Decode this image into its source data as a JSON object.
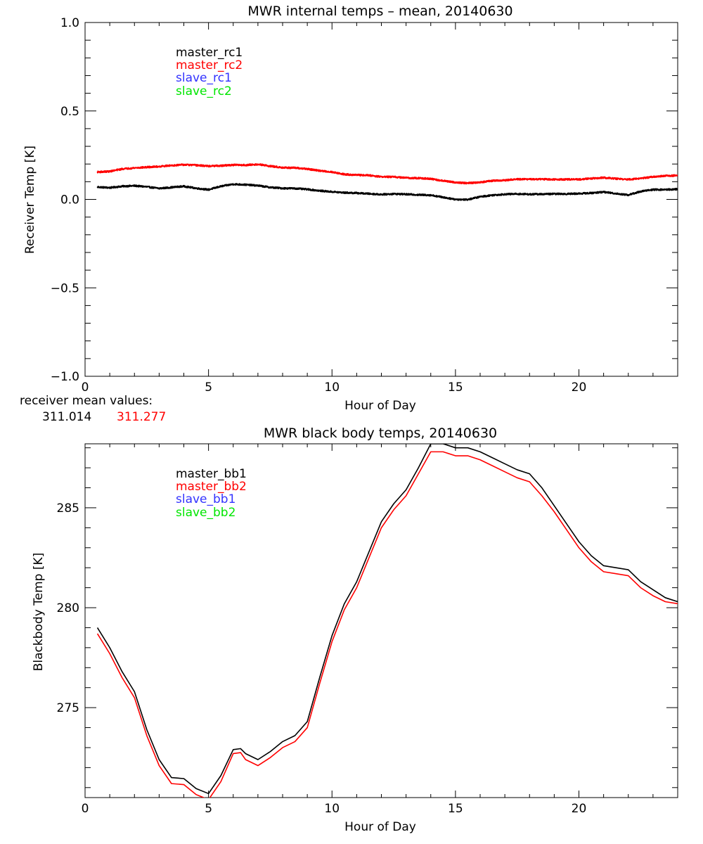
{
  "colors": {
    "black": "#000000",
    "red": "#ff0000",
    "blue": "#3333ff",
    "green": "#00e600"
  },
  "receiver_mean": {
    "label": "receiver mean values:",
    "value1": "311.014",
    "value2": "311.277"
  },
  "chart_data": [
    {
      "type": "line",
      "title": "MWR internal temps – mean, 20140630",
      "xlabel": "Hour of Day",
      "ylabel": "Receiver Temp [K]",
      "xlim": [
        0,
        24
      ],
      "ylim": [
        -1.0,
        1.0
      ],
      "xticks": [
        0,
        5,
        10,
        15,
        20
      ],
      "xtick_labels": [
        "0",
        "5",
        "10",
        "15",
        "20"
      ],
      "yticks": [
        -1.0,
        -0.5,
        0.0,
        0.5,
        1.0
      ],
      "ytick_labels": [
        "−1.0",
        "−0.5",
        "0.0",
        "0.5",
        "1.0"
      ],
      "legend": [
        "master_rc1",
        "master_rc2",
        "slave_rc1",
        "slave_rc2"
      ],
      "legend_position": "top-left",
      "series": [
        {
          "name": "master_rc1",
          "color": "black",
          "noise": 0.004,
          "x": [
            0.5,
            1.0,
            1.5,
            2.0,
            2.5,
            3.0,
            3.5,
            4.0,
            4.5,
            5.0,
            5.5,
            6.0,
            6.5,
            7.0,
            7.5,
            8.0,
            8.5,
            9.0,
            9.5,
            10.0,
            10.5,
            11.0,
            11.5,
            12.0,
            12.5,
            13.0,
            13.5,
            14.0,
            14.5,
            15.0,
            15.5,
            16.0,
            16.5,
            17.0,
            17.5,
            18.0,
            18.5,
            19.0,
            19.5,
            20.0,
            20.5,
            21.0,
            21.5,
            22.0,
            22.5,
            23.0,
            23.5,
            24.0
          ],
          "y": [
            0.07,
            0.066,
            0.074,
            0.077,
            0.071,
            0.062,
            0.068,
            0.074,
            0.063,
            0.055,
            0.074,
            0.086,
            0.083,
            0.078,
            0.068,
            0.063,
            0.062,
            0.057,
            0.049,
            0.043,
            0.038,
            0.036,
            0.032,
            0.028,
            0.031,
            0.029,
            0.026,
            0.024,
            0.012,
            0.0,
            -0.001,
            0.015,
            0.024,
            0.029,
            0.031,
            0.029,
            0.03,
            0.031,
            0.031,
            0.033,
            0.036,
            0.042,
            0.033,
            0.025,
            0.045,
            0.055,
            0.055,
            0.058
          ]
        },
        {
          "name": "master_rc2",
          "color": "red",
          "noise": 0.004,
          "x": [
            0.5,
            1.0,
            1.5,
            2.0,
            2.5,
            3.0,
            3.5,
            4.0,
            4.5,
            5.0,
            5.5,
            6.0,
            6.5,
            7.0,
            7.5,
            8.0,
            8.5,
            9.0,
            9.5,
            10.0,
            10.5,
            11.0,
            11.5,
            12.0,
            12.5,
            13.0,
            13.5,
            14.0,
            14.5,
            15.0,
            15.5,
            16.0,
            16.5,
            17.0,
            17.5,
            18.0,
            18.5,
            19.0,
            19.5,
            20.0,
            20.5,
            21.0,
            21.5,
            22.0,
            22.5,
            23.0,
            23.5,
            24.0
          ],
          "y": [
            0.155,
            0.158,
            0.172,
            0.178,
            0.182,
            0.186,
            0.192,
            0.196,
            0.193,
            0.188,
            0.19,
            0.195,
            0.194,
            0.198,
            0.188,
            0.18,
            0.178,
            0.172,
            0.162,
            0.155,
            0.142,
            0.138,
            0.136,
            0.128,
            0.127,
            0.122,
            0.12,
            0.116,
            0.105,
            0.096,
            0.092,
            0.097,
            0.105,
            0.108,
            0.114,
            0.114,
            0.114,
            0.113,
            0.113,
            0.113,
            0.118,
            0.123,
            0.117,
            0.113,
            0.118,
            0.128,
            0.133,
            0.135
          ]
        },
        {
          "name": "slave_rc1",
          "color": "blue",
          "x": [],
          "y": []
        },
        {
          "name": "slave_rc2",
          "color": "green",
          "x": [],
          "y": []
        }
      ]
    },
    {
      "type": "line",
      "title": "MWR black body temps, 20140630",
      "xlabel": "Hour of Day",
      "ylabel": "Blackbody Temp [K]",
      "xlim": [
        0,
        24
      ],
      "ylim": [
        270.5,
        288.2
      ],
      "xticks": [
        0,
        5,
        10,
        15,
        20
      ],
      "xtick_labels": [
        "0",
        "5",
        "10",
        "15",
        "20"
      ],
      "yticks": [
        275,
        280,
        285
      ],
      "ytick_labels": [
        "275",
        "280",
        "285"
      ],
      "legend": [
        "master_bb1",
        "master_bb2",
        "slave_bb1",
        "slave_bb2"
      ],
      "legend_position": "top-left",
      "series": [
        {
          "name": "master_bb1",
          "color": "black",
          "noise": 0,
          "x": [
            0.5,
            1.0,
            1.5,
            2.0,
            2.5,
            3.0,
            3.5,
            4.0,
            4.5,
            5.0,
            5.5,
            6.0,
            6.3,
            6.5,
            7.0,
            7.5,
            8.0,
            8.5,
            9.0,
            9.5,
            10.0,
            10.5,
            11.0,
            11.5,
            12.0,
            12.5,
            13.0,
            13.5,
            14.0,
            14.5,
            15.0,
            15.5,
            16.0,
            16.5,
            17.0,
            17.5,
            18.0,
            18.5,
            19.0,
            19.5,
            20.0,
            20.5,
            21.0,
            21.5,
            22.0,
            22.5,
            23.0,
            23.5,
            24.0
          ],
          "y": [
            279.0,
            278.0,
            276.8,
            275.8,
            273.9,
            272.4,
            271.5,
            271.45,
            270.95,
            270.7,
            271.6,
            272.9,
            272.95,
            272.7,
            272.4,
            272.8,
            273.3,
            273.6,
            274.3,
            276.5,
            278.6,
            280.2,
            281.3,
            282.8,
            284.3,
            285.2,
            285.9,
            287.0,
            288.2,
            288.2,
            288.0,
            288.0,
            287.8,
            287.5,
            287.2,
            286.9,
            286.7,
            286.0,
            285.1,
            284.2,
            283.3,
            282.6,
            282.1,
            282.0,
            281.9,
            281.3,
            280.9,
            280.5,
            280.3
          ]
        },
        {
          "name": "master_bb2",
          "color": "red",
          "noise": 0,
          "x": [
            0.5,
            1.0,
            1.5,
            2.0,
            2.5,
            3.0,
            3.5,
            4.0,
            4.5,
            5.0,
            5.5,
            6.0,
            6.3,
            6.5,
            7.0,
            7.5,
            8.0,
            8.5,
            9.0,
            9.5,
            10.0,
            10.5,
            11.0,
            11.5,
            12.0,
            12.5,
            13.0,
            13.5,
            14.0,
            14.5,
            15.0,
            15.5,
            16.0,
            16.5,
            17.0,
            17.5,
            18.0,
            18.5,
            19.0,
            19.5,
            20.0,
            20.5,
            21.0,
            21.5,
            22.0,
            22.5,
            23.0,
            23.5,
            24.0
          ],
          "y": [
            278.7,
            277.7,
            276.5,
            275.5,
            273.6,
            272.1,
            271.2,
            271.15,
            270.65,
            270.4,
            271.3,
            272.7,
            272.75,
            272.4,
            272.1,
            272.5,
            273.0,
            273.3,
            274.0,
            276.2,
            278.3,
            279.9,
            281.0,
            282.5,
            284.0,
            284.9,
            285.6,
            286.7,
            287.8,
            287.8,
            287.6,
            287.6,
            287.4,
            287.1,
            286.8,
            286.5,
            286.3,
            285.6,
            284.8,
            283.9,
            283.0,
            282.3,
            281.8,
            281.7,
            281.6,
            281.0,
            280.6,
            280.3,
            280.2
          ]
        },
        {
          "name": "slave_bb1",
          "color": "blue",
          "x": [],
          "y": []
        },
        {
          "name": "slave_bb2",
          "color": "green",
          "x": [],
          "y": []
        }
      ]
    }
  ]
}
